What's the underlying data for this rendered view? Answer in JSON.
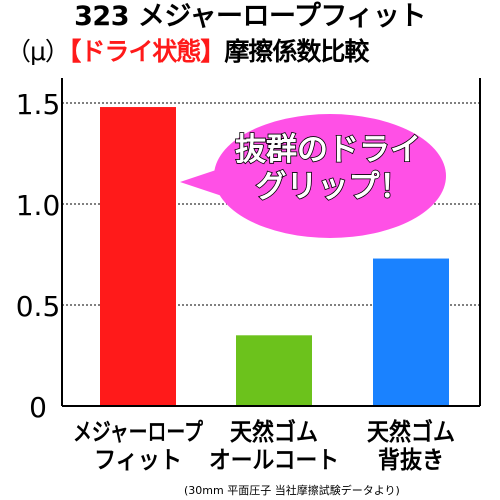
{
  "title": {
    "line1": "323 メジャーロープフィット",
    "unit": "（μ）",
    "highlight": "【ドライ状態】",
    "suffix": "摩擦係数比較"
  },
  "callout": {
    "line1": "抜群のドライ",
    "line2": "グリップ！"
  },
  "footnote": "(30mm 平面圧子 当社摩擦試験データより)",
  "colors": {
    "bar1": "#ff1a1a",
    "bar2": "#6cc21c",
    "bar3": "#1a82ff",
    "callout_fill": "#ff50e6",
    "highlight": "#ff1a1a"
  },
  "chart_data": {
    "type": "bar",
    "categories": [
      [
        "メジャーロープ",
        "フィット"
      ],
      [
        "天然ゴム",
        "オールコート"
      ],
      [
        "天然ゴム",
        "背抜き"
      ]
    ],
    "values": [
      1.48,
      0.35,
      0.73
    ],
    "colors": [
      "#ff1a1a",
      "#6cc21c",
      "#1a82ff"
    ],
    "ylim": [
      0,
      1.5
    ],
    "yticks": [
      "0",
      "0.5",
      "1.0",
      "1.5"
    ],
    "ytick_values": [
      0,
      0.5,
      1.0,
      1.5
    ],
    "grid": true
  }
}
